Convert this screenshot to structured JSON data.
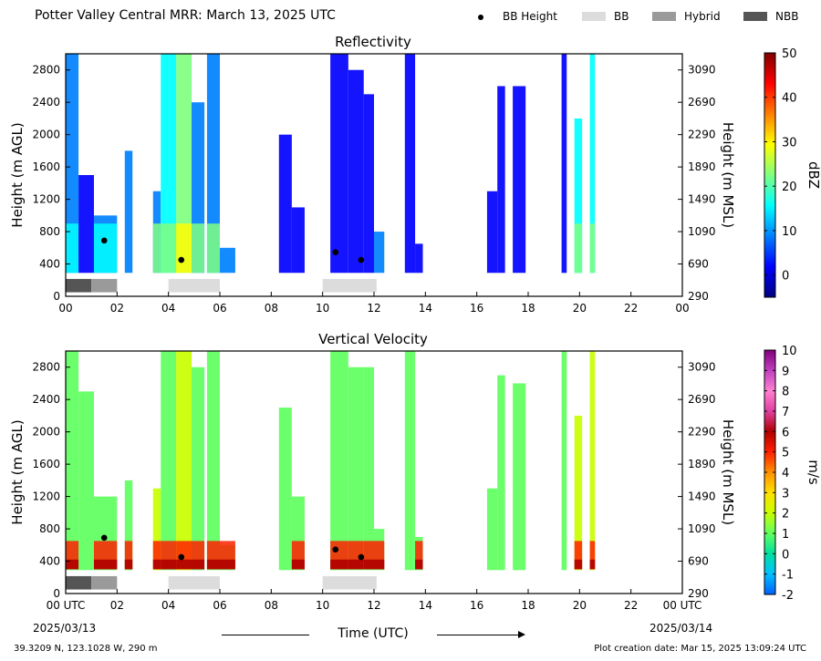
{
  "header": {
    "title": "Potter Valley Central MRR:  March 13, 2025 UTC",
    "legend": [
      {
        "label": "BB Height",
        "kind": "dot",
        "color": "#000000"
      },
      {
        "label": "BB",
        "kind": "box",
        "color": "#dcdcdc"
      },
      {
        "label": "Hybrid",
        "kind": "box",
        "color": "#9a9a9a"
      },
      {
        "label": "NBB",
        "kind": "box",
        "color": "#555555"
      }
    ]
  },
  "footer": {
    "location": "39.3209 N, 123.1028 W, 290 m",
    "created": "Plot creation date: Mar 15, 2025 13:09:24 UTC",
    "time_label": "Time (UTC)",
    "start_date": "2025/03/13",
    "end_date": "2025/03/14"
  },
  "chart_data": [
    {
      "type": "heatmap",
      "title": "Reflectivity",
      "ylabel": "Height (m AGL)",
      "y2label": "Height (m MSL)",
      "colorbar_label": "dBZ",
      "x_ticks": [
        "00",
        "02",
        "04",
        "06",
        "08",
        "10",
        "12",
        "14",
        "16",
        "18",
        "20",
        "22",
        "00"
      ],
      "y_ticks": [
        0,
        400,
        800,
        1200,
        1600,
        2000,
        2400,
        2800
      ],
      "y2_ticks": [
        290,
        690,
        1090,
        1490,
        1890,
        2290,
        2690,
        3090
      ],
      "xlim": [
        0,
        24
      ],
      "ylim": [
        0,
        3000
      ],
      "colorbar": {
        "range": [
          -5,
          50
        ],
        "ticks": [
          0,
          10,
          20,
          30,
          40,
          50
        ],
        "stops": [
          "#00007f",
          "#0000ff",
          "#0080ff",
          "#00ffff",
          "#80ff80",
          "#ffff00",
          "#ff8000",
          "#ff0000",
          "#7f0000"
        ]
      },
      "bb_heights": [
        {
          "time": 1.5,
          "height": 690
        },
        {
          "time": 4.5,
          "height": 450
        },
        {
          "time": 10.5,
          "height": 545
        },
        {
          "time": 11.5,
          "height": 450
        }
      ],
      "bb_segments": [
        {
          "start": 0.0,
          "end": 1.0,
          "kind": "NBB"
        },
        {
          "start": 1.0,
          "end": 2.0,
          "kind": "Hybrid"
        },
        {
          "start": 4.0,
          "end": 6.0,
          "kind": "BB"
        },
        {
          "start": 10.0,
          "end": 12.1,
          "kind": "BB"
        }
      ],
      "echoes": [
        {
          "start": 0.0,
          "end": 0.5,
          "top": 3000,
          "value": 8
        },
        {
          "start": 0.5,
          "end": 1.1,
          "top": 1500,
          "value": 5
        },
        {
          "start": 1.1,
          "end": 2.0,
          "top": 1000,
          "value": 8
        },
        {
          "start": 2.3,
          "end": 2.6,
          "top": 1800,
          "value": 6
        },
        {
          "start": 3.4,
          "end": 3.7,
          "top": 1300,
          "value": 10
        },
        {
          "start": 3.7,
          "end": 4.3,
          "top": 3000,
          "value": 15
        },
        {
          "start": 4.3,
          "end": 4.9,
          "top": 3000,
          "value": 22
        },
        {
          "start": 4.9,
          "end": 5.4,
          "top": 2400,
          "value": 12
        },
        {
          "start": 5.5,
          "end": 6.0,
          "top": 3000,
          "value": 10
        },
        {
          "start": 6.0,
          "end": 6.6,
          "top": 600,
          "value": 6
        },
        {
          "start": 8.3,
          "end": 8.8,
          "top": 2000,
          "value": 3
        },
        {
          "start": 8.8,
          "end": 9.3,
          "top": 1100,
          "value": 4
        },
        {
          "start": 10.3,
          "end": 11.0,
          "top": 3000,
          "value": 3
        },
        {
          "start": 11.0,
          "end": 11.6,
          "top": 2800,
          "value": 4
        },
        {
          "start": 11.6,
          "end": 12.0,
          "top": 2500,
          "value": 3
        },
        {
          "start": 12.0,
          "end": 12.4,
          "top": 800,
          "value": 6
        },
        {
          "start": 13.2,
          "end": 13.6,
          "top": 3000,
          "value": 2
        },
        {
          "start": 13.6,
          "end": 13.9,
          "top": 650,
          "value": 5
        },
        {
          "start": 16.4,
          "end": 16.8,
          "top": 1300,
          "value": 3
        },
        {
          "start": 16.8,
          "end": 17.1,
          "top": 2600,
          "value": 3
        },
        {
          "start": 17.4,
          "end": 17.9,
          "top": 2600,
          "value": 2
        },
        {
          "start": 19.3,
          "end": 19.5,
          "top": 3000,
          "value": 3
        },
        {
          "start": 19.8,
          "end": 20.1,
          "top": 2200,
          "value": 15
        },
        {
          "start": 20.4,
          "end": 20.6,
          "top": 3000,
          "value": 15
        }
      ]
    },
    {
      "type": "heatmap",
      "title": "Vertical Velocity",
      "ylabel": "Height (m AGL)",
      "y2label": "Height (m MSL)",
      "colorbar_label": "m/s",
      "x_ticks": [
        "00 UTC",
        "02",
        "04",
        "06",
        "08",
        "10",
        "12",
        "14",
        "16",
        "18",
        "20",
        "22",
        "00 UTC"
      ],
      "y_ticks": [
        0,
        400,
        800,
        1200,
        1600,
        2000,
        2400,
        2800
      ],
      "y2_ticks": [
        290,
        690,
        1090,
        1490,
        1890,
        2290,
        2690,
        3090
      ],
      "xlim": [
        0,
        24
      ],
      "ylim": [
        0,
        3000
      ],
      "colorbar": {
        "range": [
          -2,
          10
        ],
        "ticks": [
          -2,
          -1,
          0,
          1,
          2,
          3,
          4,
          5,
          6,
          7,
          8,
          9,
          10
        ],
        "stops": [
          "#0060ff",
          "#00c0ff",
          "#00e0a0",
          "#60ff60",
          "#c8ff00",
          "#ffe000",
          "#ff9000",
          "#ff2000",
          "#b00000",
          "#e040a0",
          "#ff80d0",
          "#c040c0",
          "#800080"
        ]
      },
      "bb_heights": [
        {
          "time": 1.5,
          "height": 690
        },
        {
          "time": 4.5,
          "height": 450
        },
        {
          "time": 10.5,
          "height": 545
        },
        {
          "time": 11.5,
          "height": 450
        }
      ],
      "bb_segments": [
        {
          "start": 0.0,
          "end": 1.0,
          "kind": "NBB"
        },
        {
          "start": 1.0,
          "end": 2.0,
          "kind": "Hybrid"
        },
        {
          "start": 4.0,
          "end": 6.0,
          "kind": "BB"
        },
        {
          "start": 10.0,
          "end": 12.1,
          "kind": "BB"
        }
      ],
      "echoes": [
        {
          "start": 0.0,
          "end": 0.5,
          "top": 3000,
          "value": 0.8
        },
        {
          "start": 0.5,
          "end": 1.1,
          "top": 2500,
          "value": 0.6
        },
        {
          "start": 1.1,
          "end": 2.0,
          "top": 1200,
          "value": 1.0
        },
        {
          "start": 2.3,
          "end": 2.6,
          "top": 1400,
          "value": 1.2
        },
        {
          "start": 3.4,
          "end": 3.7,
          "top": 1300,
          "value": 1.5
        },
        {
          "start": 3.7,
          "end": 4.3,
          "top": 3000,
          "value": 1.2
        },
        {
          "start": 4.3,
          "end": 4.9,
          "top": 3000,
          "value": 1.5
        },
        {
          "start": 4.9,
          "end": 5.4,
          "top": 2800,
          "value": 1.2
        },
        {
          "start": 5.5,
          "end": 6.0,
          "top": 3000,
          "value": 1.0
        },
        {
          "start": 6.0,
          "end": 6.6,
          "top": 600,
          "value": 1.0
        },
        {
          "start": 8.3,
          "end": 8.8,
          "top": 2300,
          "value": 0.5
        },
        {
          "start": 8.8,
          "end": 9.3,
          "top": 1200,
          "value": 0.8
        },
        {
          "start": 10.3,
          "end": 11.0,
          "top": 3000,
          "value": 0.8
        },
        {
          "start": 11.0,
          "end": 11.6,
          "top": 2800,
          "value": 1.0
        },
        {
          "start": 11.6,
          "end": 12.0,
          "top": 2800,
          "value": 0.8
        },
        {
          "start": 12.0,
          "end": 12.4,
          "top": 800,
          "value": 1.0
        },
        {
          "start": 13.2,
          "end": 13.6,
          "top": 3000,
          "value": 0.5
        },
        {
          "start": 13.6,
          "end": 13.9,
          "top": 700,
          "value": 0.8
        },
        {
          "start": 16.4,
          "end": 16.8,
          "top": 1300,
          "value": 0.6
        },
        {
          "start": 16.8,
          "end": 17.1,
          "top": 2700,
          "value": 0.6
        },
        {
          "start": 17.4,
          "end": 17.9,
          "top": 2600,
          "value": 0.5
        },
        {
          "start": 19.3,
          "end": 19.5,
          "top": 3000,
          "value": 0.6
        },
        {
          "start": 19.8,
          "end": 20.1,
          "top": 2200,
          "value": 1.5
        },
        {
          "start": 20.4,
          "end": 20.6,
          "top": 3000,
          "value": 1.5
        }
      ],
      "near_surface": {
        "bottom": 300,
        "top": 650,
        "value": 4.5
      }
    }
  ]
}
